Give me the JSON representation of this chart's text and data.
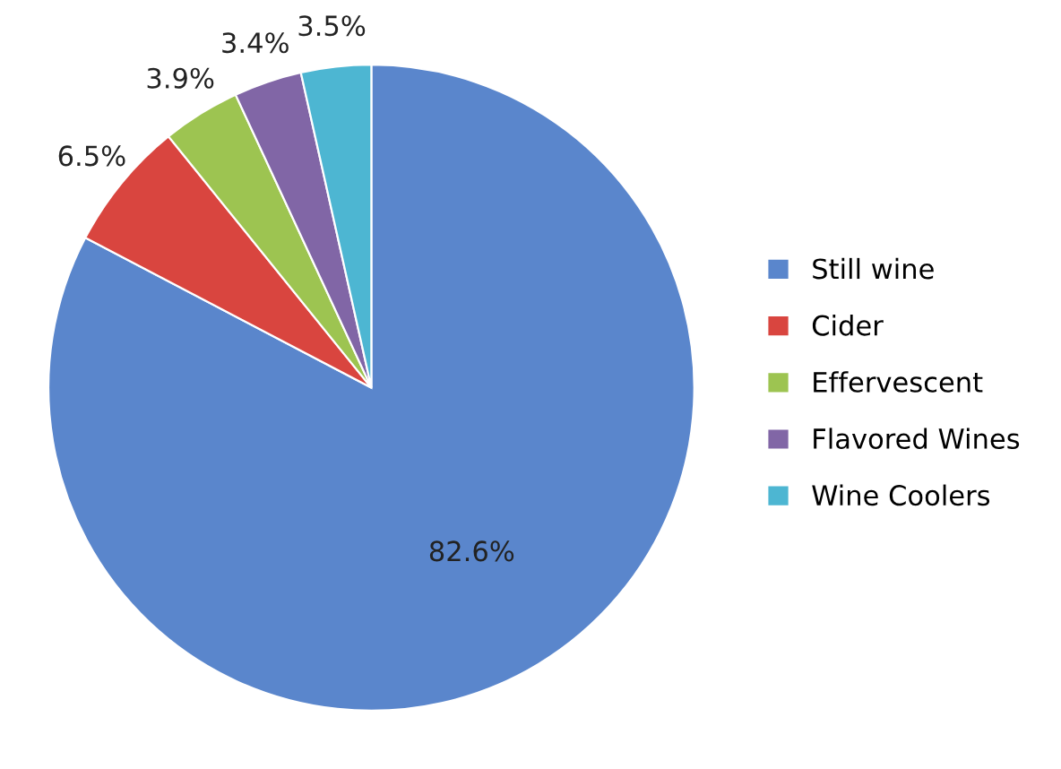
{
  "chart_data": {
    "type": "pie",
    "categories": [
      "Still wine",
      "Cider",
      "Effervescent",
      "Flavored Wines",
      "Wine Coolers"
    ],
    "values": [
      82.6,
      6.5,
      3.9,
      3.4,
      3.5
    ],
    "value_labels": [
      "82.6%",
      "6.5%",
      "3.9%",
      "3.4%",
      "3.5%"
    ],
    "colors": [
      "#5a86cc",
      "#d9453f",
      "#9dc451",
      "#8166a6",
      "#4db6d2"
    ],
    "legend": "right"
  }
}
